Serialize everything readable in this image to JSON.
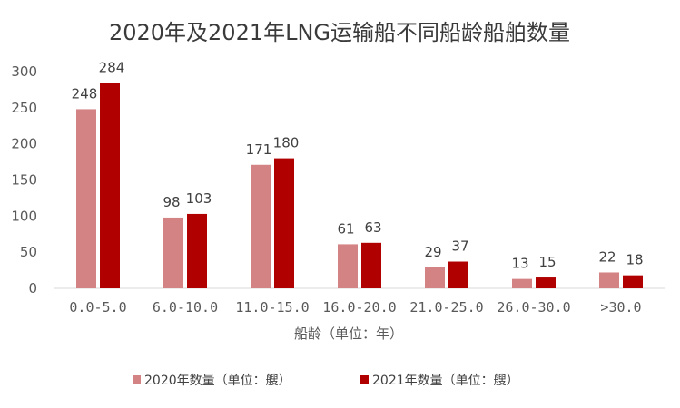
{
  "chart_data": {
    "type": "bar",
    "title": "2020年及2021年LNG运输船不同船龄船舶数量",
    "xlabel": "船龄（单位：年）",
    "ylabel": "",
    "categories": [
      "0.0-5.0",
      "6.0-10.0",
      "11.0-15.0",
      "16.0-20.0",
      "21.0-25.0",
      "26.0-30.0",
      ">30.0"
    ],
    "yticks": [
      "0",
      "50",
      "100",
      "150",
      "200",
      "250",
      "300"
    ],
    "ylim": [
      0,
      300
    ],
    "grid": false,
    "legend_position": "bottom",
    "series": [
      {
        "name": "2020年数量（单位：艘）",
        "color": "#d48385",
        "values": [
          248,
          98,
          171,
          61,
          29,
          13,
          22
        ]
      },
      {
        "name": "2021年数量（单位：艘）",
        "color": "#b00000",
        "values": [
          284,
          103,
          180,
          63,
          37,
          15,
          18
        ]
      }
    ]
  }
}
